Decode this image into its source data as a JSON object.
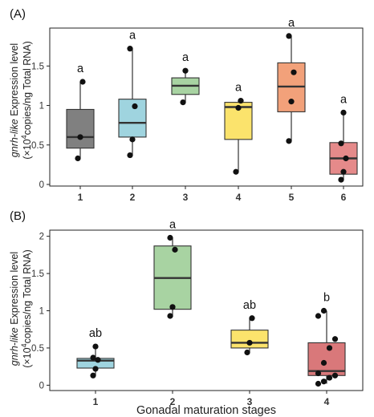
{
  "chart_data": [
    {
      "type": "box",
      "panel_label": "(A)",
      "ylabel_gene": "gnrh-like",
      "ylabel_rest": " Expression level",
      "ylabel_line2_pre": "(×10",
      "ylabel_line2_sup": "4",
      "ylabel_line2_post": "copies/ng Total RNA)",
      "ylim": [
        0,
        1.95
      ],
      "yticks": [
        "0",
        "0.5",
        "1",
        "1.5"
      ],
      "ytick_values": [
        0,
        0.5,
        1,
        1.5
      ],
      "categories": [
        "1",
        "2",
        "3",
        "4",
        "5",
        "6"
      ],
      "boxes": [
        {
          "q1": 0.46,
          "median": 0.6,
          "q3": 0.95,
          "whisker_low": 0.33,
          "whisker_high": 1.3,
          "fill": "#808080",
          "sig": "a",
          "points": [
            0.33,
            0.6,
            1.3
          ]
        },
        {
          "q1": 0.6,
          "median": 0.78,
          "q3": 1.08,
          "whisker_low": 0.37,
          "whisker_high": 1.72,
          "fill": "#9fd4df",
          "sig": "a",
          "points": [
            0.37,
            0.57,
            0.99,
            1.72
          ]
        },
        {
          "q1": 1.14,
          "median": 1.25,
          "q3": 1.35,
          "whisker_low": 1.04,
          "whisker_high": 1.44,
          "fill": "#a8d3a2",
          "sig": "",
          "points": [
            1.04,
            1.44
          ]
        },
        {
          "q1": 0.57,
          "median": 0.98,
          "q3": 1.04,
          "whisker_low": 0.16,
          "whisker_high": 1.06,
          "fill": "#fbe36c",
          "sig": "a",
          "points": [
            0.16,
            0.97,
            1.06
          ]
        },
        {
          "q1": 0.92,
          "median": 1.24,
          "q3": 1.54,
          "whisker_low": 0.55,
          "whisker_high": 1.88,
          "fill": "#f2a17a",
          "sig": "a",
          "points": [
            0.55,
            1.05,
            1.42,
            1.88
          ]
        },
        {
          "q1": 0.13,
          "median": 0.33,
          "q3": 0.53,
          "whisker_low": 0.06,
          "whisker_high": 0.91,
          "fill": "#e58a8a",
          "sig": "a",
          "points": [
            0.06,
            0.16,
            0.33,
            0.52,
            0.91
          ]
        }
      ],
      "extra_sig": [
        {
          "category": "3",
          "label": "a"
        }
      ]
    },
    {
      "type": "box",
      "panel_label": "(B)",
      "ylabel_gene": "gnrh-like",
      "ylabel_rest": " Expression level",
      "ylabel_line2_pre": "(×10",
      "ylabel_line2_sup": "4",
      "ylabel_line2_post": "copies/ng Total RNA)",
      "xlabel": "Gonadal maturation stages",
      "ylim": [
        -0.05,
        2.05
      ],
      "yticks": [
        "0",
        "0.5",
        "1",
        "1.5",
        "2"
      ],
      "ytick_values": [
        0,
        0.5,
        1,
        1.5,
        2
      ],
      "categories": [
        "1",
        "2",
        "3",
        "4"
      ],
      "boxes": [
        {
          "q1": 0.23,
          "median": 0.33,
          "q3": 0.36,
          "whisker_low": 0.13,
          "whisker_high": 0.52,
          "fill": "#9fd4df",
          "sig": "ab",
          "points": [
            0.13,
            0.22,
            0.34,
            0.37,
            0.52
          ]
        },
        {
          "q1": 1.02,
          "median": 1.44,
          "q3": 1.87,
          "whisker_low": 0.92,
          "whisker_high": 1.98,
          "fill": "#a8d3a2",
          "sig": "a",
          "points": [
            0.93,
            1.05,
            1.82,
            1.98
          ]
        },
        {
          "q1": 0.5,
          "median": 0.57,
          "q3": 0.74,
          "whisker_low": 0.44,
          "whisker_high": 0.9,
          "fill": "#fbe36c",
          "sig": "ab",
          "points": [
            0.44,
            0.57,
            0.9
          ]
        },
        {
          "q1": 0.13,
          "median": 0.19,
          "q3": 0.57,
          "whisker_low": 0.02,
          "whisker_high": 1.0,
          "fill": "#d9787a",
          "sig": "b",
          "points": [
            0.02,
            0.05,
            0.1,
            0.13,
            0.16,
            0.3,
            0.5,
            0.62,
            0.93,
            1.0
          ]
        }
      ]
    }
  ]
}
